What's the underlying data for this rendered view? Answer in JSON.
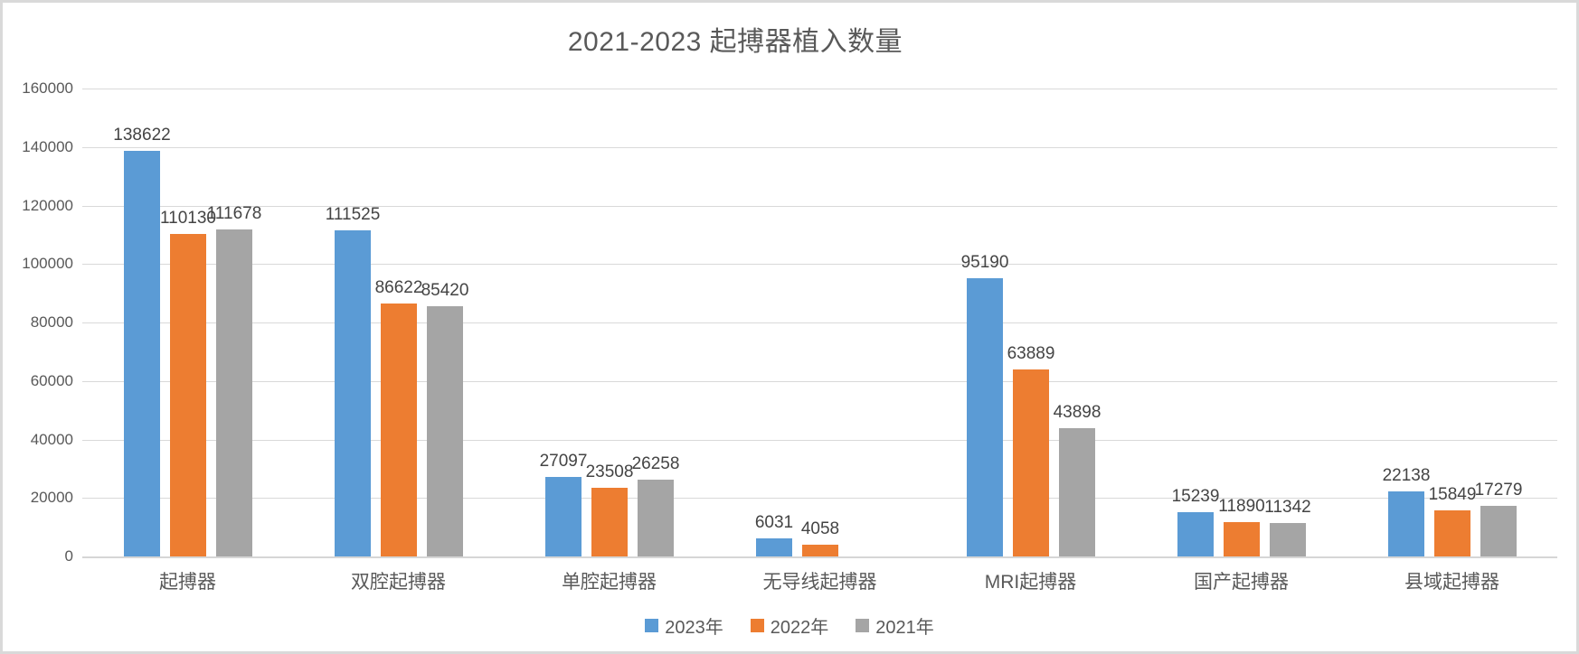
{
  "title": "2021-2023 起搏器植入数量",
  "chart_data": {
    "type": "bar",
    "title": "2021-2023 起搏器植入数量",
    "categories": [
      "起搏器",
      "双腔起搏器",
      "单腔起搏器",
      "无导线起搏器",
      "MRI起搏器",
      "国产起搏器",
      "县域起搏器"
    ],
    "series": [
      {
        "name": "2023年",
        "color": "#5B9BD5",
        "values": [
          138622,
          111525,
          27097,
          6031,
          95190,
          15239,
          22138
        ]
      },
      {
        "name": "2022年",
        "color": "#ED7D31",
        "values": [
          110130,
          86622,
          23508,
          4058,
          63889,
          11890,
          15849
        ]
      },
      {
        "name": "2021年",
        "color": "#A5A5A5",
        "values": [
          111678,
          85420,
          26258,
          null,
          43898,
          11342,
          17279
        ]
      }
    ],
    "ylim": [
      0,
      160000
    ],
    "ytick_step": 20000,
    "yticks": [
      "0",
      "20000",
      "40000",
      "60000",
      "80000",
      "100000",
      "120000",
      "140000",
      "160000"
    ],
    "xlabel": "",
    "ylabel": "",
    "grid": true,
    "legend_position": "bottom",
    "data_labels": true
  },
  "colors": {
    "frame_border": "#d9d9d9",
    "gridline": "#d9d9d9",
    "title_text": "#595959",
    "axis_text": "#595959",
    "data_label_text": "#444444"
  }
}
